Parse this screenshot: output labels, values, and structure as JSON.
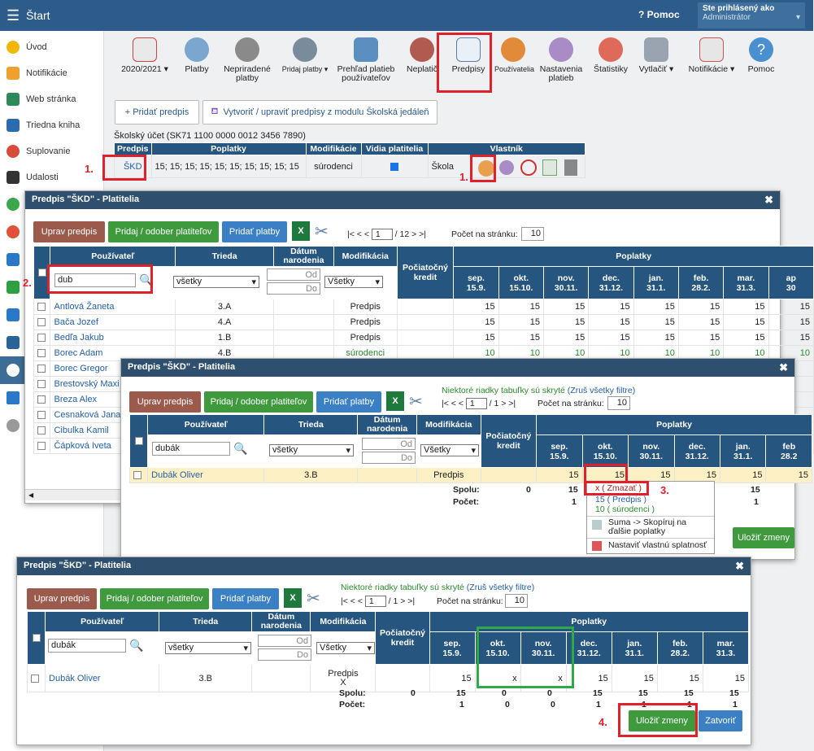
{
  "topbar": {
    "title": "Štart",
    "help": "Pomoc",
    "user_line1": "Ste prihlásený ako",
    "user_line2": "Administrátor"
  },
  "sidebar": {
    "items": [
      "Úvod",
      "Notifikácie",
      "Web stránka",
      "Triedna kniha",
      "Suplovanie",
      "Udalosti"
    ]
  },
  "toolbar": {
    "items": [
      "2020/2021",
      "Platby",
      "Nepriradené platby",
      "Pridaj platby",
      "Prehľad platieb používateľov",
      "Neplatič",
      "Predpisy",
      "Používatelia",
      "Nastavenia platieb",
      "Štatistiky",
      "Vytlačiť",
      "Notifikácie",
      "Pomoc"
    ]
  },
  "main": {
    "add_btn": "+ Pridať predpis",
    "school_btn": "Vytvoriť / upraviť predpisy z modulu Školská jedáleň",
    "account": "Školský účet (SK71 1100 0000 0012 3456 7890)",
    "headers": [
      "Predpis",
      "Poplatky",
      "Modifikácie",
      "Vidia platitelia",
      "Vlastník"
    ],
    "row": {
      "predpis": "ŠKD",
      "poplatky": "15; 15; 15; 15; 15; 15; 15; 15; 15; 15",
      "modif": "súrodenci",
      "vlastnik": "Škola"
    }
  },
  "markers": {
    "m1": "1.",
    "m1b": "1.",
    "m2": "2.",
    "m3": "3.",
    "m4": "4."
  },
  "common": {
    "edit": "Uprav predpis",
    "addrem": "Pridaj / odober platiteľov",
    "addpay": "Pridať platby",
    "save": "Uložiť zmeny",
    "close": "Zatvoriť",
    "per_page": "Počet na stránku:",
    "per_page_val": "10",
    "from": "Od",
    "to": "Do",
    "all": "všetky",
    "all2": "Všetky",
    "hidden_note": "Niektoré riadky tabuľky sú skryté",
    "cancel_filter": "(Zruš všetky filtre)",
    "col_user": "Používateľ",
    "col_class": "Trieda",
    "col_birth": "Dátum narodenia",
    "col_mod": "Modifikácia",
    "col_init": "Počiatočný kredit",
    "col_fees": "Poplatky",
    "spolu": "Spolu:",
    "pocet": "Počet:"
  },
  "dlg1": {
    "title": "Predpis \"ŠKD\" - Platitelia",
    "search": "dub",
    "pager_prefix": "|< < <",
    "page": "1",
    "pager_suffix": "/ 12  > >|",
    "months": [
      [
        "sep.",
        "15.9."
      ],
      [
        "okt.",
        "15.10."
      ],
      [
        "nov.",
        "30.11."
      ],
      [
        "dec.",
        "31.12."
      ],
      [
        "jan.",
        "31.1."
      ],
      [
        "feb.",
        "28.2."
      ],
      [
        "mar.",
        "31.3."
      ],
      [
        "ap",
        "30"
      ]
    ],
    "rows": [
      [
        "Antlová Žaneta",
        "3.A",
        "Predpis",
        "15",
        "15",
        "15",
        "15",
        "15",
        "15",
        "15",
        "15"
      ],
      [
        "Bača Jozef",
        "4.A",
        "Predpis",
        "15",
        "15",
        "15",
        "15",
        "15",
        "15",
        "15",
        "15"
      ],
      [
        "Bedľa Jakub",
        "1.B",
        "Predpis",
        "15",
        "15",
        "15",
        "15",
        "15",
        "15",
        "15",
        "15"
      ],
      [
        "Borec Adam",
        "4.B",
        "súrodenci",
        "10",
        "10",
        "10",
        "10",
        "10",
        "10",
        "10",
        "10"
      ],
      [
        "Borec Gregor",
        "",
        "",
        "",
        "",
        "",
        "",
        "",
        "",
        "",
        ""
      ],
      [
        "Brestovský Maxi",
        "",
        "",
        "",
        "",
        "",
        "",
        "",
        "",
        "",
        ""
      ],
      [
        "Breza Alex",
        "",
        "",
        "",
        "",
        "",
        "",
        "",
        "",
        "",
        ""
      ],
      [
        "Cesnaková Jana",
        "",
        "",
        "",
        "",
        "",
        "",
        "",
        "",
        "",
        ""
      ],
      [
        "Cibulka Kamil",
        "",
        "",
        "",
        "",
        "",
        "",
        "",
        "",
        "",
        ""
      ],
      [
        "Čápková Iveta",
        "",
        "",
        "",
        "",
        "",
        "",
        "",
        "",
        "",
        ""
      ]
    ]
  },
  "dlg2": {
    "title": "Predpis \"ŠKD\" - Platitelia",
    "search": "dubák",
    "pager_prefix": "|< < <",
    "page": "1",
    "pager_suffix": "/ 1  > >|",
    "months": [
      [
        "sep.",
        "15.9."
      ],
      [
        "okt.",
        "15.10."
      ],
      [
        "nov.",
        "30.11."
      ],
      [
        "dec.",
        "31.12."
      ],
      [
        "jan.",
        "31.1."
      ],
      [
        "feb",
        "28.2"
      ]
    ],
    "row": [
      "Dubák Oliver",
      "3.B",
      "Predpis",
      "15",
      "15",
      "15",
      "15",
      "15",
      "15"
    ],
    "spolu": [
      "0",
      "15",
      "",
      "",
      "",
      "15"
    ],
    "pocet": [
      "",
      "1",
      "",
      "",
      "",
      "1"
    ],
    "menu": [
      "x  ( Zmazať )",
      "15  ( Predpis )",
      "10  ( súrodenci )",
      "Suma -> Skopíruj na ďalšie poplatky",
      "Nastaviť vlastnú splatnosť"
    ]
  },
  "dlg3": {
    "title": "Predpis \"ŠKD\" - Platitelia",
    "search": "dubák",
    "pager_prefix": "|< < <",
    "page": "1",
    "pager_suffix": "/ 1  > >|",
    "months": [
      [
        "sep.",
        "15.9."
      ],
      [
        "okt.",
        "15.10."
      ],
      [
        "nov.",
        "30.11."
      ],
      [
        "dec.",
        "31.12."
      ],
      [
        "jan.",
        "31.1."
      ],
      [
        "feb.",
        "28.2."
      ],
      [
        "mar.",
        "31.3."
      ]
    ],
    "row": [
      "Dubák Oliver",
      "3.B",
      "Predpis",
      "X",
      "15",
      "x",
      "x",
      "15",
      "15",
      "15",
      "15"
    ],
    "spolu": [
      "0",
      "15",
      "0",
      "0",
      "15",
      "15",
      "15",
      "15"
    ],
    "pocet": [
      "",
      "1",
      "0",
      "0",
      "1",
      "1",
      "1",
      "1"
    ]
  }
}
